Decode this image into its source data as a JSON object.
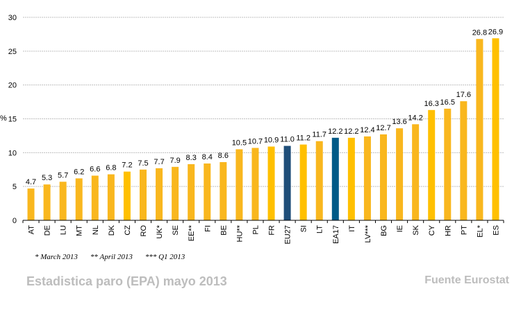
{
  "chart_data": {
    "type": "bar",
    "title": "",
    "xlabel": "",
    "ylabel": "%",
    "ylim": [
      0,
      30
    ],
    "yticks": [
      0,
      5,
      10,
      15,
      20,
      25,
      30
    ],
    "grid": true,
    "categories": [
      "AT",
      "DE",
      "LU",
      "MT",
      "NL",
      "DK",
      "CZ",
      "RO",
      "UK*",
      "SE",
      "EE**",
      "FI",
      "BE",
      "HU**",
      "PL",
      "FR",
      "EU27",
      "SI",
      "LT",
      "EA17",
      "IT",
      "LV***",
      "BG",
      "IE",
      "SK",
      "CY",
      "HR",
      "PT",
      "EL*",
      "ES"
    ],
    "values": [
      4.7,
      5.3,
      5.7,
      6.2,
      6.6,
      6.8,
      7.2,
      7.5,
      7.7,
      7.9,
      8.3,
      8.4,
      8.6,
      10.5,
      10.7,
      10.9,
      11.0,
      11.2,
      11.7,
      12.2,
      12.2,
      12.4,
      12.7,
      13.6,
      14.2,
      16.3,
      16.5,
      17.6,
      26.8,
      26.9
    ],
    "data_labels": [
      "4.7",
      "5.3",
      "5.7",
      "6.2",
      "6.6",
      "6.8",
      "7.2",
      "7.5",
      "7.7",
      "7.9",
      "8.3",
      "8.4",
      "8.6",
      "10.5",
      "10.7",
      "10.9",
      "11.0",
      "11.2",
      "11.7",
      "12.2",
      "12.2",
      "12.4",
      "12.7",
      "13.6",
      "14.2",
      "16.3",
      "16.5",
      "17.6",
      "26.8",
      "26.9"
    ],
    "highlight": {
      "EU27": "#1f4e79",
      "EA17": "#005a87"
    },
    "colors": {
      "default": "#f9b71e",
      "alt": "#ffc000",
      "grid": "#bfbfbf",
      "axis": "#000000"
    }
  },
  "footnotes": [
    "* March 2013",
    "** April 2013",
    "*** Q1 2013"
  ],
  "caption": {
    "left": "Estadistica paro (EPA) mayo 2013",
    "right": "Fuente Eurostat"
  }
}
